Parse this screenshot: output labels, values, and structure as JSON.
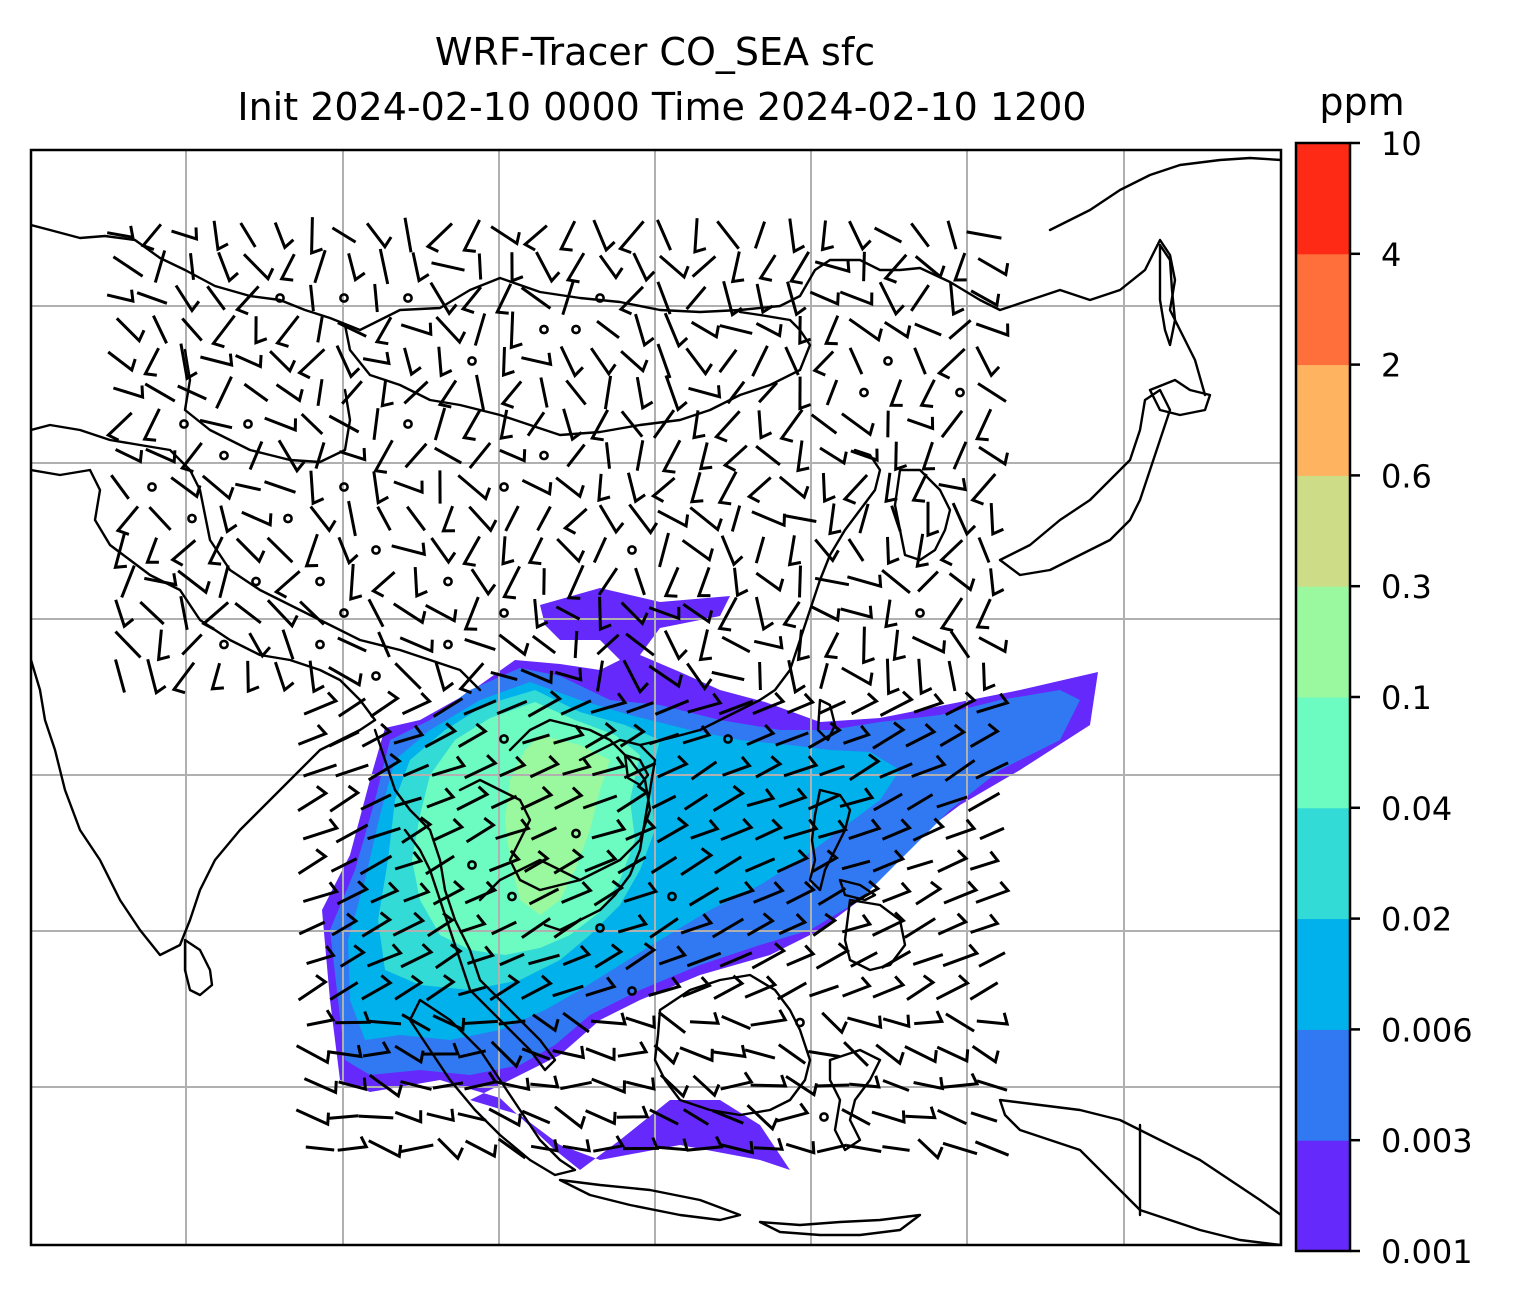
{
  "title_line1": "WRF-Tracer CO_SEA sfc",
  "title_line2": "Init 2024-02-10 0000 Time 2024-02-10 1200",
  "colorbar": {
    "unit": "ppm",
    "levels": [
      "0.001",
      "0.003",
      "0.006",
      "0.02",
      "0.04",
      "0.1",
      "0.3",
      "0.6",
      "2",
      "4",
      "10"
    ],
    "colors": [
      "#6529fb",
      "#3179f3",
      "#00b1eb",
      "#32dbd5",
      "#6cfbc0",
      "#9af89e",
      "#cddc86",
      "#feb361",
      "#ff6f3c",
      "#ff2a15"
    ]
  },
  "map": {
    "fill_colors": {
      "level1": "#6529fb",
      "level2": "#3179f3",
      "level3": "#00b1eb",
      "level4": "#32dbd5",
      "level5": "#6cfbc0",
      "level6": "#9af89e"
    },
    "wind_barbs": "black",
    "gridlines": true
  }
}
